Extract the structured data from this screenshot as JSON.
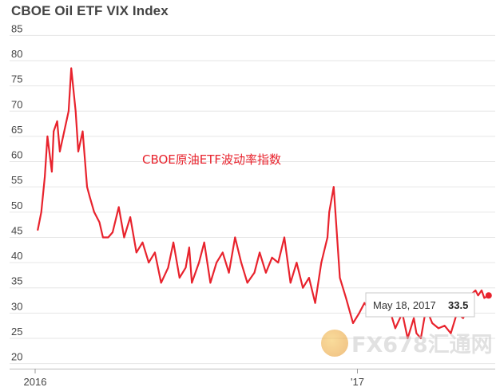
{
  "chart_data": {
    "type": "line",
    "title": "CBOE Oil ETF VIX Index",
    "annotation": "CBOE原油ETF波动率指数",
    "x_tick_labels": [
      "2016",
      "'17"
    ],
    "y_ticks": [
      20,
      25,
      30,
      35,
      40,
      45,
      50,
      55,
      60,
      65,
      70,
      75,
      80,
      85
    ],
    "ylim": [
      19,
      86
    ],
    "grid": true,
    "color": "#e8232d",
    "tooltip": {
      "date": "May 18, 2017",
      "value": "33.5"
    },
    "x": [
      "2016-01-04",
      "2016-01-08",
      "2016-01-12",
      "2016-01-15",
      "2016-01-20",
      "2016-01-22",
      "2016-01-26",
      "2016-01-29",
      "2016-02-03",
      "2016-02-08",
      "2016-02-11",
      "2016-02-16",
      "2016-02-19",
      "2016-02-24",
      "2016-02-29",
      "2016-03-03",
      "2016-03-08",
      "2016-03-14",
      "2016-03-18",
      "2016-03-24",
      "2016-03-29",
      "2016-04-05",
      "2016-04-11",
      "2016-04-18",
      "2016-04-25",
      "2016-05-02",
      "2016-05-09",
      "2016-05-16",
      "2016-05-23",
      "2016-05-31",
      "2016-06-06",
      "2016-06-13",
      "2016-06-20",
      "2016-06-24",
      "2016-06-27",
      "2016-07-05",
      "2016-07-11",
      "2016-07-18",
      "2016-07-25",
      "2016-08-01",
      "2016-08-08",
      "2016-08-15",
      "2016-08-22",
      "2016-08-29",
      "2016-09-06",
      "2016-09-12",
      "2016-09-19",
      "2016-09-26",
      "2016-10-03",
      "2016-10-10",
      "2016-10-17",
      "2016-10-24",
      "2016-10-31",
      "2016-11-07",
      "2016-11-14",
      "2016-11-21",
      "2016-11-28",
      "2016-11-30",
      "2016-12-05",
      "2016-12-12",
      "2016-12-19",
      "2016-12-27",
      "2017-01-03",
      "2017-01-09",
      "2017-01-17",
      "2017-01-23",
      "2017-01-30",
      "2017-02-06",
      "2017-02-13",
      "2017-02-21",
      "2017-02-27",
      "2017-03-06",
      "2017-03-09",
      "2017-03-14",
      "2017-03-20",
      "2017-03-27",
      "2017-04-03",
      "2017-04-10",
      "2017-04-17",
      "2017-04-24",
      "2017-05-01",
      "2017-05-04",
      "2017-05-09",
      "2017-05-15",
      "2017-05-18",
      "2017-05-22",
      "2017-05-25",
      "2017-05-30"
    ],
    "values": [
      46.5,
      50,
      57,
      65,
      58,
      66,
      68,
      62,
      66,
      70,
      78.5,
      70,
      62,
      66,
      55,
      53,
      50,
      48,
      45,
      45,
      46,
      51,
      45,
      49,
      42,
      44,
      40,
      42,
      36,
      39,
      44,
      37,
      39,
      43,
      36,
      40,
      44,
      36,
      40,
      42,
      38,
      45,
      40,
      36,
      38,
      42,
      38,
      41,
      40,
      45,
      36,
      40,
      35,
      37,
      32,
      40,
      45,
      50,
      55,
      37,
      33,
      28,
      30,
      32,
      30,
      33,
      30,
      31,
      27,
      30,
      25,
      29,
      26,
      25,
      31,
      28,
      27,
      27.5,
      26,
      30,
      29,
      30,
      33.5,
      34.5,
      33.5,
      34.5,
      33,
      33.5
    ]
  },
  "watermark": {
    "brand": "FX678",
    "brand_cn": "汇通网"
  }
}
